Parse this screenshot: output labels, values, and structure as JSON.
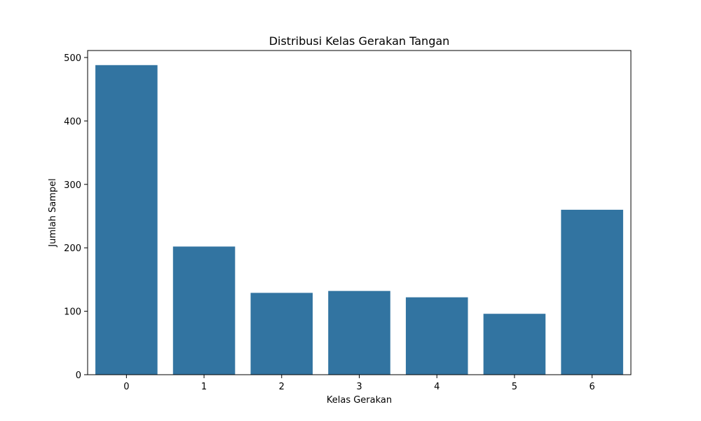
{
  "chart_data": {
    "type": "bar",
    "title": "Distribusi Kelas Gerakan Tangan",
    "xlabel": "Kelas Gerakan",
    "ylabel": "Jumlah Sampel",
    "categories": [
      "0",
      "1",
      "2",
      "3",
      "4",
      "5",
      "6"
    ],
    "values": [
      488,
      202,
      129,
      132,
      122,
      96,
      260
    ],
    "ylim": [
      0,
      511
    ],
    "yticks": [
      0,
      100,
      200,
      300,
      400,
      500
    ],
    "grid": false,
    "legend": "none",
    "colors": {
      "bar": "#3274a1",
      "axis": "#000000",
      "background": "#ffffff"
    }
  }
}
